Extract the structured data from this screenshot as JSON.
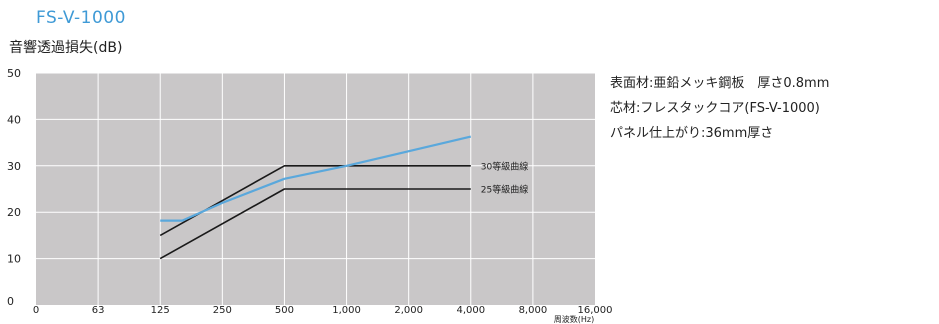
{
  "title": "FS-V-1000",
  "specs": [
    "表面材:亜鉛メッキ鋼板　厚さ0.8mm",
    "芯材:フレスタックコア(FS-V-1000)",
    "パネル仕上がり:36mm厚さ"
  ],
  "colors": {
    "plot_bg": "#c9c7c8",
    "grid": "#ffffff",
    "measured": "#5aa8dc",
    "reference": "#1a1a1a",
    "title": "#3f9ad6"
  },
  "chart_data": {
    "type": "line",
    "title": "FS-V-1000",
    "ylabel": "音響透過損失(dB)",
    "xlabel": "周波数(Hz)",
    "x_categories": [
      "0",
      "63",
      "125",
      "250",
      "500",
      "1,000",
      "2,000",
      "4,000",
      "8,000",
      "16,000"
    ],
    "ylim": [
      0,
      50
    ],
    "yticks": [
      0,
      10,
      20,
      30,
      40,
      50
    ],
    "grid": true,
    "series": [
      {
        "name": "",
        "style": "measured",
        "points": [
          [
            125,
            18.2
          ],
          [
            160,
            18.2
          ],
          [
            250,
            22.0
          ],
          [
            500,
            27.2
          ],
          [
            1000,
            30.0
          ],
          [
            4000,
            36.3
          ]
        ]
      },
      {
        "name": "30等級曲線",
        "style": "reference",
        "points": [
          [
            125,
            15
          ],
          [
            500,
            30
          ],
          [
            4000,
            30
          ]
        ]
      },
      {
        "name": "25等級曲線",
        "style": "reference",
        "points": [
          [
            125,
            10
          ],
          [
            500,
            25
          ],
          [
            4000,
            25
          ]
        ]
      }
    ]
  }
}
